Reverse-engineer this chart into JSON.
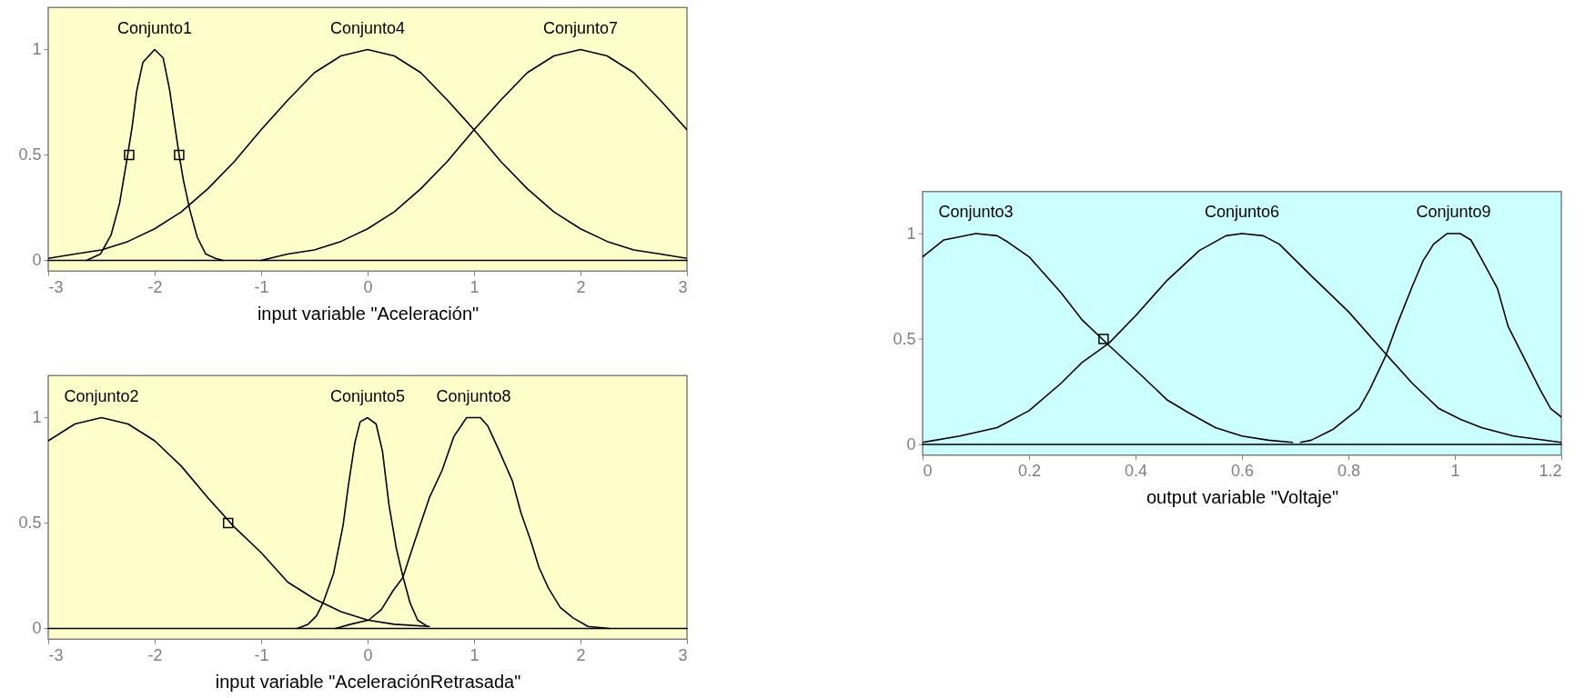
{
  "chart_data": [
    {
      "type": "line",
      "xlabel": "input variable \"Aceleración\"",
      "xlim": [
        -3,
        3
      ],
      "xticks": [
        -3,
        -2,
        -1,
        0,
        1,
        2,
        3
      ],
      "ylim": [
        -0.05,
        1.2
      ],
      "yticks": [
        0,
        0.5,
        1
      ],
      "ref_lines": [
        {
          "axis": "y",
          "value": 0,
          "color": "#000000"
        }
      ],
      "series": [
        {
          "name": "Conjunto1",
          "color": "#000000",
          "x": [
            -2.64,
            -2.51,
            -2.41,
            -2.33,
            -2.26,
            -2.21,
            -2.17,
            -2.11,
            -2,
            -1.92,
            -1.86,
            -1.82,
            -1.77,
            -1.73,
            -1.67,
            -1.6,
            -1.52,
            -1.43,
            -1.36
          ],
          "values": [
            0,
            0.03,
            0.12,
            0.27,
            0.48,
            0.64,
            0.8,
            0.94,
            1,
            0.96,
            0.81,
            0.67,
            0.5,
            0.38,
            0.24,
            0.11,
            0.03,
            0.01,
            0
          ]
        },
        {
          "name": "Conjunto4",
          "color": "#000000",
          "x": [
            -3,
            -2.75,
            -2.5,
            -2.25,
            -2,
            -1.75,
            -1.5,
            -1.25,
            -1,
            -0.75,
            -0.5,
            -0.25,
            0,
            0.25,
            0.5,
            0.75,
            1,
            1.25,
            1.5,
            1.75,
            2,
            2.25,
            2.5,
            2.75,
            3
          ],
          "values": [
            0.01,
            0.03,
            0.05,
            0.09,
            0.15,
            0.23,
            0.34,
            0.47,
            0.62,
            0.76,
            0.89,
            0.97,
            1,
            0.97,
            0.89,
            0.76,
            0.62,
            0.47,
            0.34,
            0.23,
            0.15,
            0.09,
            0.05,
            0.03,
            0.01
          ]
        },
        {
          "name": "Conjunto7",
          "color": "#000000",
          "x": [
            -1,
            -0.75,
            -0.5,
            -0.25,
            0,
            0.25,
            0.5,
            0.75,
            1,
            1.25,
            1.5,
            1.75,
            2,
            2.25,
            2.5,
            2.75,
            3
          ],
          "values": [
            0,
            0.03,
            0.05,
            0.09,
            0.15,
            0.23,
            0.34,
            0.47,
            0.62,
            0.76,
            0.89,
            0.97,
            1,
            0.97,
            0.89,
            0.76,
            0.62
          ]
        },
        {
          "type": "scatter",
          "marker": "square",
          "color": "#000000",
          "x": [
            -2.24,
            -1.77
          ],
          "values": [
            0.5,
            0.5
          ]
        }
      ]
    },
    {
      "type": "line",
      "xlabel": "input variable \"AceleraciónRetrasada\"",
      "xlim": [
        -3,
        3
      ],
      "xticks": [
        -3,
        -2,
        -1,
        0,
        1,
        2,
        3
      ],
      "ylim": [
        -0.05,
        1.2
      ],
      "yticks": [
        0,
        0.5,
        1
      ],
      "ref_lines": [
        {
          "axis": "y",
          "value": 0,
          "color": "#000000"
        }
      ],
      "series": [
        {
          "name": "Conjunto2",
          "color": "#000000",
          "x": [
            -3,
            -2.75,
            -2.5,
            -2.25,
            -2,
            -1.75,
            -1.5,
            -1.25,
            -1,
            -0.75,
            -0.5,
            -0.25,
            0,
            0.25,
            0.58
          ],
          "values": [
            0.89,
            0.97,
            1,
            0.97,
            0.89,
            0.77,
            0.62,
            0.48,
            0.36,
            0.22,
            0.14,
            0.08,
            0.04,
            0.02,
            0.01
          ]
        },
        {
          "name": "Conjunto5",
          "color": "#000000",
          "x": [
            -0.66,
            -0.56,
            -0.48,
            -0.42,
            -0.32,
            -0.23,
            -0.18,
            -0.12,
            -0.07,
            0,
            0.08,
            0.14,
            0.2,
            0.27,
            0.33,
            0.4,
            0.47,
            0.56
          ],
          "values": [
            0,
            0.02,
            0.06,
            0.12,
            0.26,
            0.49,
            0.68,
            0.88,
            0.98,
            1,
            0.97,
            0.84,
            0.59,
            0.38,
            0.25,
            0.12,
            0.04,
            0.01
          ]
        },
        {
          "name": "Conjunto8",
          "color": "#000000",
          "x": [
            -0.3,
            -0.16,
            0.01,
            0.13,
            0.24,
            0.33,
            0.44,
            0.58,
            0.7,
            0.81,
            0.93,
            1.06,
            1.13,
            1.23,
            1.36,
            1.44,
            1.53,
            1.61,
            1.7,
            1.81,
            1.93,
            2.07,
            2.27
          ],
          "values": [
            0,
            0.02,
            0.04,
            0.09,
            0.18,
            0.24,
            0.41,
            0.62,
            0.75,
            0.91,
            1,
            1,
            0.96,
            0.85,
            0.7,
            0.55,
            0.42,
            0.29,
            0.19,
            0.1,
            0.05,
            0.01,
            0
          ]
        },
        {
          "type": "scatter",
          "marker": "square",
          "color": "#000000",
          "x": [
            -1.31
          ],
          "values": [
            0.5
          ]
        }
      ]
    },
    {
      "type": "line",
      "xlabel": "output variable \"Voltaje\"",
      "xlim": [
        0,
        1.2
      ],
      "xticks": [
        0,
        0.2,
        0.4,
        0.6,
        0.8,
        1,
        1.2
      ],
      "ylim": [
        -0.05,
        1.2
      ],
      "yticks": [
        0,
        0.5,
        1
      ],
      "ref_lines": [
        {
          "axis": "y",
          "value": 0,
          "color": "#000000"
        }
      ],
      "series": [
        {
          "name": "Conjunto3",
          "color": "#000000",
          "x": [
            0,
            0.04,
            0.1,
            0.14,
            0.16,
            0.2,
            0.26,
            0.3,
            0.35,
            0.41,
            0.46,
            0.5,
            0.55,
            0.6,
            0.65,
            0.695
          ],
          "values": [
            0.89,
            0.97,
            1,
            0.99,
            0.96,
            0.89,
            0.72,
            0.59,
            0.47,
            0.33,
            0.21,
            0.15,
            0.08,
            0.04,
            0.02,
            0.01
          ]
        },
        {
          "name": "Conjunto6",
          "color": "#000000",
          "x": [
            0,
            0.07,
            0.14,
            0.2,
            0.26,
            0.3,
            0.35,
            0.4,
            0.46,
            0.52,
            0.57,
            0.6,
            0.64,
            0.67,
            0.73,
            0.8,
            0.87,
            0.92,
            0.97,
            1.01,
            1.05,
            1.11,
            1.2
          ],
          "values": [
            0.01,
            0.04,
            0.08,
            0.16,
            0.29,
            0.39,
            0.48,
            0.61,
            0.78,
            0.92,
            0.99,
            1,
            0.99,
            0.95,
            0.8,
            0.63,
            0.43,
            0.29,
            0.17,
            0.12,
            0.08,
            0.04,
            0.01
          ]
        },
        {
          "name": "Conjunto9",
          "color": "#000000",
          "x": [
            0.71,
            0.73,
            0.77,
            0.8,
            0.82,
            0.84,
            0.87,
            0.89,
            0.92,
            0.94,
            0.96,
            0.985,
            1.01,
            1.03,
            1.05,
            1.08,
            1.1,
            1.13,
            1.16,
            1.18,
            1.2
          ],
          "values": [
            0.01,
            0.02,
            0.07,
            0.13,
            0.17,
            0.26,
            0.42,
            0.56,
            0.75,
            0.87,
            0.95,
            1,
            1,
            0.97,
            0.88,
            0.74,
            0.56,
            0.41,
            0.26,
            0.17,
            0.13
          ]
        },
        {
          "type": "scatter",
          "marker": "square",
          "color": "#000000",
          "x": [
            0.34
          ],
          "values": [
            0.5
          ]
        }
      ]
    }
  ]
}
